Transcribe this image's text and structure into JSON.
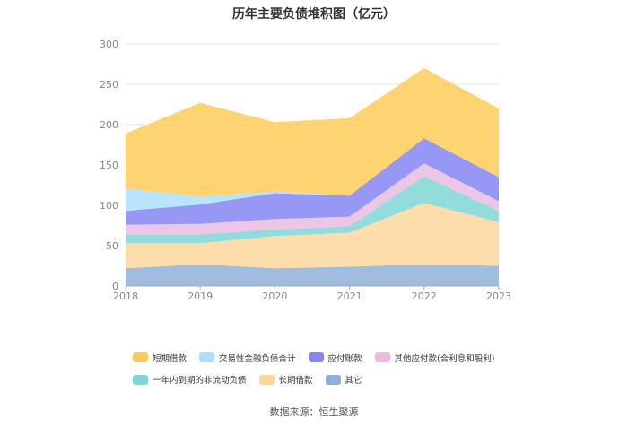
{
  "chart_data": {
    "type": "area",
    "stacked": true,
    "title": "历年主要负债堆积图（亿元）",
    "x": [
      "2018",
      "2019",
      "2020",
      "2021",
      "2022",
      "2023"
    ],
    "ylim": [
      0,
      300
    ],
    "yticks": [
      "0",
      "50",
      "100",
      "150",
      "200",
      "250",
      "300"
    ],
    "grid": true,
    "legend_position": "bottom",
    "series": [
      {
        "name": "其它",
        "color": "#8fb0d9",
        "values": [
          22,
          27,
          22,
          24,
          27,
          25
        ]
      },
      {
        "name": "长期借款",
        "color": "#fcd79c",
        "values": [
          31,
          26,
          40,
          42,
          76,
          54
        ]
      },
      {
        "name": "一年内到期的非流动负债",
        "color": "#80d6d6",
        "values": [
          11,
          11,
          8,
          8,
          33,
          14
        ]
      },
      {
        "name": "其他应付款(合利息和股利)",
        "color": "#e8bce0",
        "values": [
          12,
          13,
          13,
          12,
          16,
          12
        ]
      },
      {
        "name": "应付账款",
        "color": "#8585f3",
        "values": [
          17,
          24,
          32,
          26,
          31,
          30
        ]
      },
      {
        "name": "交易性金融负债合计",
        "color": "#ace0fa",
        "values": [
          28,
          10,
          2,
          0,
          0,
          0
        ]
      },
      {
        "name": "短期借款",
        "color": "#fecb58",
        "values": [
          68,
          116,
          86,
          96,
          87,
          85
        ]
      }
    ]
  },
  "source": "数据来源：恒生聚源"
}
